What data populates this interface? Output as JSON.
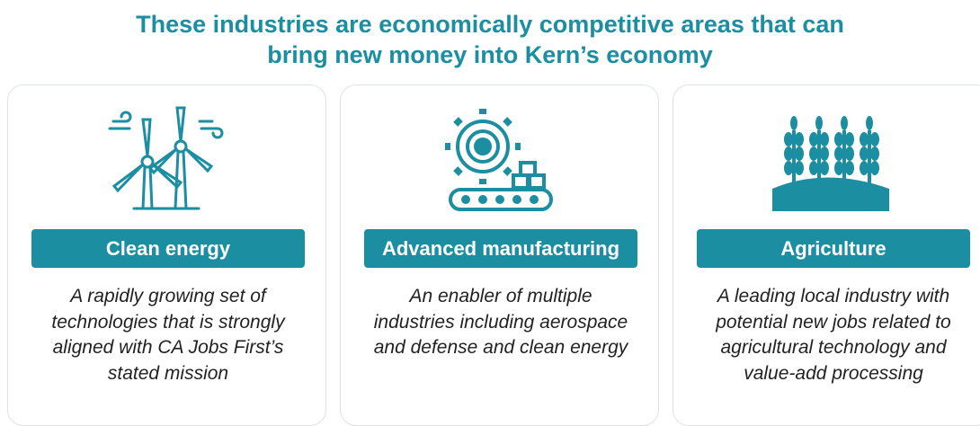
{
  "header": {
    "title": [
      "These industries are economically competitive areas that can",
      "bring new money into Kern’s economy"
    ]
  },
  "cards": [
    {
      "label": "Clean energy",
      "description": "A rapidly growing set of technologies that is strongly aligned with CA Jobs First’s stated mission"
    },
    {
      "label": "Advanced manufacturing",
      "description": "An enabler of multiple industries including aerospace and defense and clean energy"
    },
    {
      "label": "Agriculture",
      "description": "A leading local industry with potential new jobs related to agricultural technology and value-add processing"
    }
  ]
}
